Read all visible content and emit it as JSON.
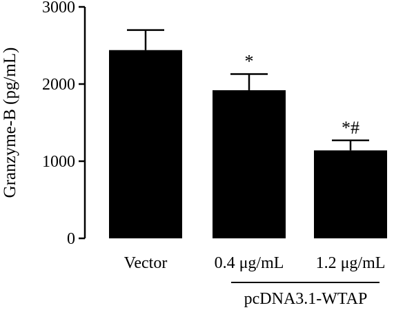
{
  "chart_data": {
    "type": "bar",
    "ylabel": "Granzyme-B (pg/mL)",
    "ylim": [
      0,
      3000
    ],
    "yticks": [
      "0",
      "1000",
      "2000",
      "3000"
    ],
    "categories": [
      "Vector",
      "0.4 μg/mL",
      "1.2 μg/mL"
    ],
    "values": [
      2440,
      1920,
      1140
    ],
    "errors": [
      260,
      210,
      130
    ],
    "significance": [
      "",
      "*",
      "*#"
    ],
    "group_label": "pcDNA3.1-WTAP",
    "bar_color": "#000000"
  }
}
